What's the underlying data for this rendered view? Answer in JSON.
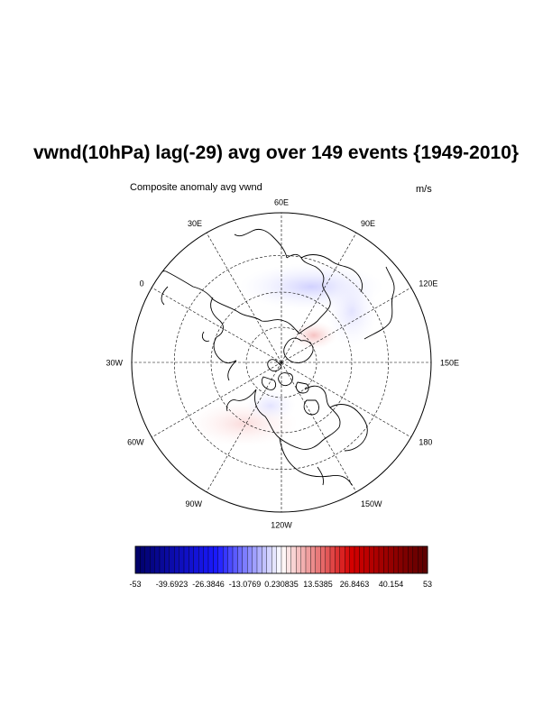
{
  "title": "vwnd(10hPa) lag(-29) avg over 149 events {1949-2010}",
  "subtitle_left": "Composite anomaly avg vwnd",
  "subtitle_right": "m/s",
  "chart_data": {
    "type": "heatmap",
    "projection": "north polar stereographic",
    "title": "vwnd(10hPa) lag(-29) avg over 149 events {1949-2010}",
    "variable_label": "Composite anomaly avg vwnd",
    "units": "m/s",
    "longitude_labels": [
      {
        "lon": 60,
        "text": "60E"
      },
      {
        "lon": 30,
        "text": "30E"
      },
      {
        "lon": 0,
        "text": "0"
      },
      {
        "lon": -30,
        "text": "30W"
      },
      {
        "lon": -60,
        "text": "60W"
      },
      {
        "lon": -90,
        "text": "90W"
      },
      {
        "lon": -120,
        "text": "120W"
      },
      {
        "lon": -150,
        "text": "150W"
      },
      {
        "lon": 180,
        "text": "180"
      },
      {
        "lon": 150,
        "text": "150E"
      },
      {
        "lon": 120,
        "text": "120E"
      },
      {
        "lon": 90,
        "text": "90E"
      }
    ],
    "colorbar": {
      "colormap": "blue-white-red",
      "range": [
        -53,
        53
      ],
      "levels": 60,
      "tick_labels": [
        "-53",
        "-39.6923",
        "-26.3846",
        "-13.0769",
        "0.230835",
        "13.5385",
        "26.8463",
        "40.154",
        "53"
      ]
    },
    "colors": {
      "min": "#000066",
      "negative": "#1a1aff",
      "zero": "#ffffff",
      "positive": "#d40000",
      "max": "#5a0000"
    }
  }
}
